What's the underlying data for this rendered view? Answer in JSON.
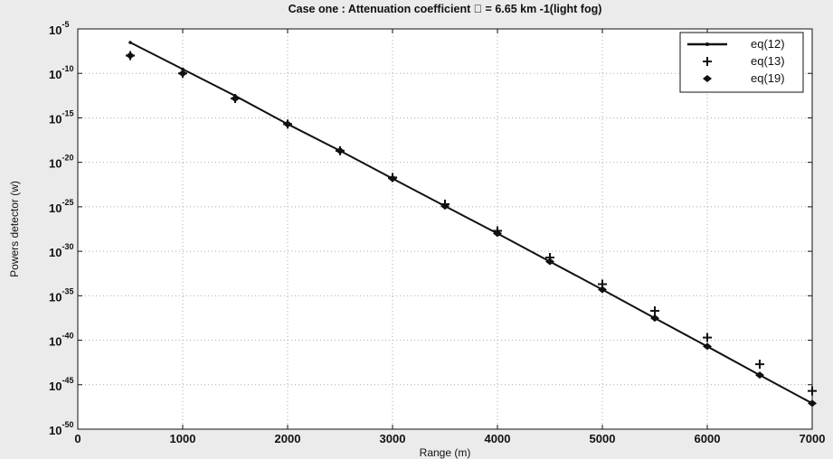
{
  "chart_data": {
    "type": "line",
    "title": "Case one : Attenuation coefficient \u0000 = 6.65 km -1(light  fog)",
    "xlabel": "Range (m)",
    "ylabel": "Powers detector (w)",
    "xlim": [
      0,
      7000
    ],
    "ylim_exponents": [
      -50,
      -5
    ],
    "yscale": "log",
    "grid": true,
    "legend_position": "top-right",
    "x_ticks": [
      "0",
      "1000",
      "2000",
      "3000",
      "4000",
      "5000",
      "6000",
      "7000"
    ],
    "y_ticks": [
      {
        "base": "10",
        "exp": "-5"
      },
      {
        "base": "10",
        "exp": "-10"
      },
      {
        "base": "10",
        "exp": "-15"
      },
      {
        "base": "10",
        "exp": "-20"
      },
      {
        "base": "10",
        "exp": "-25"
      },
      {
        "base": "10",
        "exp": "-30"
      },
      {
        "base": "10",
        "exp": "-35"
      },
      {
        "base": "10",
        "exp": "-40"
      },
      {
        "base": "10",
        "exp": "-45"
      },
      {
        "base": "10",
        "exp": "-50"
      }
    ],
    "x": [
      500,
      1000,
      1500,
      2000,
      2500,
      3000,
      3500,
      4000,
      4500,
      5000,
      5500,
      6000,
      6500,
      7000
    ],
    "series": [
      {
        "name": "eq(12)",
        "marker": "line",
        "values": [
          3e-07,
          3e-10,
          3e-13,
          2e-16,
          2e-19,
          1.5e-22,
          1.2e-25,
          1e-28,
          7e-32,
          5e-35,
          3e-38,
          2e-41,
          1.2e-44,
          8e-48
        ]
      },
      {
        "name": "eq(13)",
        "marker": "plus",
        "values": [
          1e-08,
          1e-10,
          1.5e-13,
          2e-16,
          2e-19,
          2e-22,
          2e-25,
          2e-28,
          2e-31,
          2e-34,
          2e-37,
          2e-40,
          2e-43,
          2e-46
        ]
      },
      {
        "name": "eq(19)",
        "marker": "diamond",
        "values": [
          1e-08,
          1e-10,
          1.5e-13,
          2e-16,
          2e-19,
          1.5e-22,
          1.2e-25,
          1e-28,
          7e-32,
          5e-35,
          3e-38,
          2e-41,
          1.2e-44,
          8e-48
        ]
      }
    ],
    "colors": {
      "line": "#111111",
      "background": "#ebebeb",
      "plot_area": "#ffffff",
      "grid": "#aaaaaa"
    }
  }
}
